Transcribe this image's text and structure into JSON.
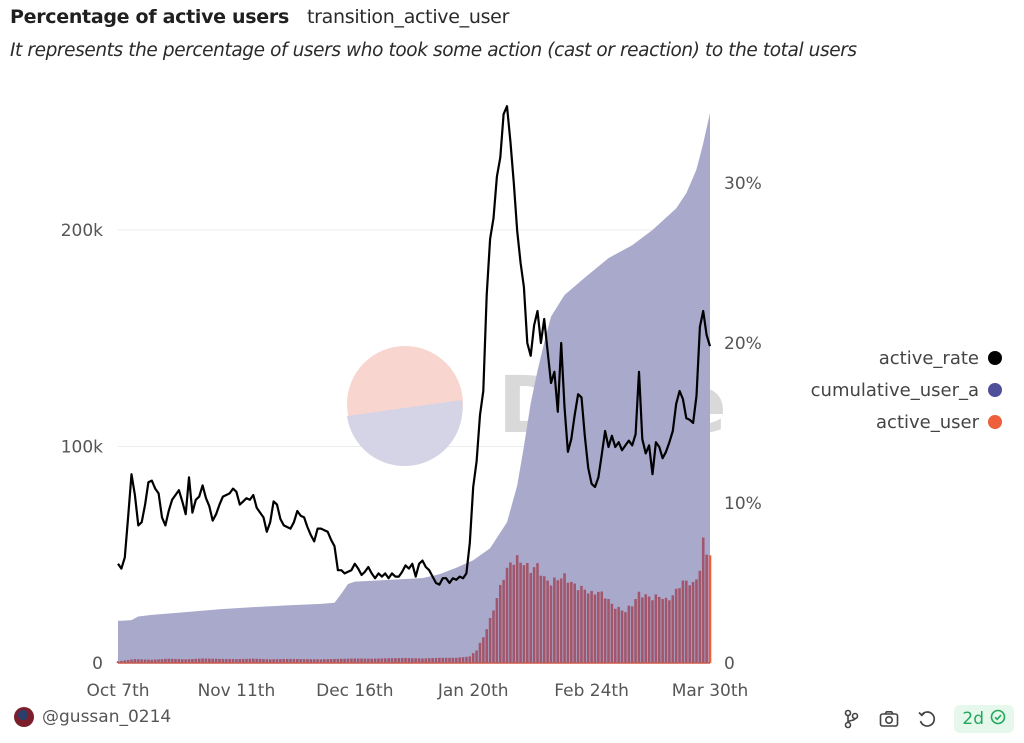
{
  "header": {
    "title": "Percentage of active users",
    "query_name": "transition_active_user",
    "description": "It represents the percentage of users who took some action (cast or reaction) to the total users"
  },
  "watermark": "Dune",
  "footer": {
    "author": "@gussan_0214",
    "icons": [
      "fork-icon",
      "camera-icon",
      "refresh-icon"
    ],
    "freshness_badge": "2d",
    "freshness_icon": "check-circle-icon"
  },
  "colors": {
    "active_rate": "#000000",
    "cumulative_user": "#4f4f9a",
    "cumulative_fill": "#a9a9cc",
    "active_user": "#ee5f3c",
    "active_user_bar": "#a1566b",
    "badge_green": "#1fa85a"
  },
  "chart_data": {
    "type": "area",
    "title": "Percentage of active users",
    "x_start": "2023-10-07",
    "x_end": "2024-03-30",
    "x_ticks": [
      "Oct 7th",
      "Nov 11th",
      "Dec 16th",
      "Jan 20th",
      "Feb 24th",
      "Mar 30th"
    ],
    "x_tick_days": [
      0,
      35,
      70,
      105,
      140,
      175
    ],
    "y_left": {
      "ticks": [
        "0",
        "100k",
        "200k"
      ],
      "tick_values": [
        0,
        100000,
        200000
      ],
      "range": [
        0,
        250000
      ]
    },
    "y_right": {
      "ticks": [
        "0",
        "10%",
        "20%",
        "30%"
      ],
      "tick_values": [
        0,
        10,
        20,
        30
      ],
      "range": [
        0,
        37
      ]
    },
    "grid": true,
    "legend_position": "right",
    "legend": [
      "active_rate",
      "cumulative_user_a",
      "active_user"
    ],
    "series": [
      {
        "name": "cumulative_user_a",
        "axis": "left",
        "type": "area",
        "points": [
          [
            0,
            19500
          ],
          [
            1,
            19500
          ],
          [
            4,
            19800
          ],
          [
            6,
            21500
          ],
          [
            10,
            22200
          ],
          [
            20,
            23500
          ],
          [
            30,
            24800
          ],
          [
            40,
            25800
          ],
          [
            50,
            26600
          ],
          [
            60,
            27300
          ],
          [
            64,
            27800
          ],
          [
            66,
            32000
          ],
          [
            68,
            36500
          ],
          [
            70,
            37600
          ],
          [
            80,
            38400
          ],
          [
            90,
            39200
          ],
          [
            95,
            41000
          ],
          [
            100,
            44000
          ],
          [
            105,
            47500
          ],
          [
            110,
            53000
          ],
          [
            115,
            65000
          ],
          [
            118,
            82000
          ],
          [
            120,
            100000
          ],
          [
            122,
            120000
          ],
          [
            124,
            135000
          ],
          [
            126,
            148000
          ],
          [
            128,
            160000
          ],
          [
            132,
            170000
          ],
          [
            138,
            178000
          ],
          [
            145,
            187000
          ],
          [
            152,
            193000
          ],
          [
            158,
            200000
          ],
          [
            165,
            210000
          ],
          [
            168,
            217000
          ],
          [
            171,
            228000
          ],
          [
            173,
            240000
          ],
          [
            175,
            254000
          ]
        ]
      },
      {
        "name": "active_user",
        "axis": "left",
        "type": "bar",
        "points": [
          [
            0,
            800
          ],
          [
            5,
            1800
          ],
          [
            10,
            1500
          ],
          [
            15,
            2000
          ],
          [
            20,
            1700
          ],
          [
            25,
            2100
          ],
          [
            30,
            1900
          ],
          [
            35,
            1800
          ],
          [
            40,
            2000
          ],
          [
            45,
            1700
          ],
          [
            50,
            1900
          ],
          [
            55,
            1800
          ],
          [
            60,
            1700
          ],
          [
            65,
            1900
          ],
          [
            70,
            2100
          ],
          [
            75,
            2000
          ],
          [
            80,
            2200
          ],
          [
            85,
            2300
          ],
          [
            90,
            2100
          ],
          [
            95,
            2400
          ],
          [
            100,
            2400
          ],
          [
            104,
            3000
          ],
          [
            106,
            6000
          ],
          [
            108,
            12000
          ],
          [
            110,
            20000
          ],
          [
            112,
            30000
          ],
          [
            114,
            40000
          ],
          [
            116,
            46000
          ],
          [
            118,
            48000
          ],
          [
            120,
            46000
          ],
          [
            122,
            43000
          ],
          [
            124,
            45000
          ],
          [
            126,
            39000
          ],
          [
            128,
            37000
          ],
          [
            130,
            39000
          ],
          [
            132,
            40000
          ],
          [
            134,
            37000
          ],
          [
            136,
            35000
          ],
          [
            138,
            34000
          ],
          [
            140,
            32000
          ],
          [
            142,
            33000
          ],
          [
            144,
            31000
          ],
          [
            146,
            27000
          ],
          [
            148,
            25000
          ],
          [
            150,
            24000
          ],
          [
            152,
            27000
          ],
          [
            154,
            32000
          ],
          [
            156,
            31000
          ],
          [
            158,
            30000
          ],
          [
            160,
            31000
          ],
          [
            162,
            29000
          ],
          [
            164,
            31000
          ],
          [
            166,
            36000
          ],
          [
            168,
            38000
          ],
          [
            170,
            36000
          ],
          [
            172,
            43000
          ],
          [
            173,
            56000
          ],
          [
            174,
            52000
          ],
          [
            175,
            49000
          ]
        ]
      },
      {
        "name": "active_rate",
        "axis": "right",
        "type": "line",
        "points": [
          [
            0,
            6.2
          ],
          [
            1,
            5.9
          ],
          [
            2,
            6.6
          ],
          [
            3,
            9.1
          ],
          [
            4,
            11.8
          ],
          [
            5,
            10.5
          ],
          [
            6,
            8.6
          ],
          [
            7,
            8.8
          ],
          [
            8,
            9.9
          ],
          [
            9,
            11.3
          ],
          [
            10,
            11.4
          ],
          [
            11,
            10.9
          ],
          [
            12,
            10.6
          ],
          [
            13,
            9.1
          ],
          [
            14,
            8.6
          ],
          [
            15,
            9.5
          ],
          [
            16,
            10.2
          ],
          [
            17,
            10.5
          ],
          [
            18,
            10.8
          ],
          [
            19,
            10.1
          ],
          [
            20,
            9.3
          ],
          [
            21,
            11.6
          ],
          [
            22,
            9.4
          ],
          [
            23,
            10.2
          ],
          [
            24,
            10.4
          ],
          [
            25,
            11.1
          ],
          [
            26,
            10.3
          ],
          [
            27,
            9.8
          ],
          [
            28,
            8.9
          ],
          [
            29,
            9.3
          ],
          [
            30,
            9.9
          ],
          [
            31,
            10.4
          ],
          [
            32,
            10.5
          ],
          [
            33,
            10.6
          ],
          [
            34,
            10.9
          ],
          [
            35,
            10.7
          ],
          [
            36,
            9.9
          ],
          [
            37,
            10.1
          ],
          [
            38,
            10.3
          ],
          [
            39,
            10.2
          ],
          [
            40,
            10.5
          ],
          [
            41,
            9.7
          ],
          [
            42,
            9.4
          ],
          [
            43,
            9.1
          ],
          [
            44,
            8.2
          ],
          [
            45,
            8.8
          ],
          [
            46,
            10.1
          ],
          [
            47,
            9.9
          ],
          [
            48,
            9.0
          ],
          [
            49,
            8.6
          ],
          [
            50,
            8.5
          ],
          [
            51,
            8.4
          ],
          [
            52,
            8.8
          ],
          [
            53,
            9.5
          ],
          [
            54,
            9.2
          ],
          [
            55,
            9.1
          ],
          [
            56,
            8.5
          ],
          [
            57,
            8.0
          ],
          [
            58,
            7.6
          ],
          [
            59,
            8.4
          ],
          [
            60,
            8.4
          ],
          [
            61,
            8.3
          ],
          [
            62,
            8.2
          ],
          [
            63,
            7.7
          ],
          [
            64,
            7.3
          ],
          [
            65,
            5.8
          ],
          [
            66,
            5.8
          ],
          [
            67,
            5.6
          ],
          [
            68,
            5.7
          ],
          [
            69,
            5.8
          ],
          [
            70,
            6.2
          ],
          [
            71,
            5.9
          ],
          [
            72,
            5.5
          ],
          [
            73,
            5.7
          ],
          [
            74,
            6.0
          ],
          [
            75,
            5.6
          ],
          [
            76,
            5.3
          ],
          [
            77,
            5.6
          ],
          [
            78,
            5.4
          ],
          [
            79,
            5.6
          ],
          [
            80,
            5.3
          ],
          [
            81,
            5.6
          ],
          [
            82,
            5.4
          ],
          [
            83,
            5.4
          ],
          [
            84,
            5.7
          ],
          [
            85,
            6.1
          ],
          [
            86,
            5.9
          ],
          [
            87,
            6.2
          ],
          [
            88,
            5.4
          ],
          [
            89,
            6.2
          ],
          [
            90,
            6.4
          ],
          [
            91,
            6.0
          ],
          [
            92,
            5.8
          ],
          [
            93,
            5.4
          ],
          [
            94,
            5.0
          ],
          [
            95,
            4.9
          ],
          [
            96,
            5.3
          ],
          [
            97,
            5.3
          ],
          [
            98,
            5.0
          ],
          [
            99,
            5.3
          ],
          [
            100,
            5.2
          ],
          [
            101,
            5.4
          ],
          [
            102,
            5.3
          ],
          [
            103,
            5.6
          ],
          [
            104,
            7.5
          ],
          [
            105,
            11.0
          ],
          [
            106,
            12.6
          ],
          [
            107,
            15.5
          ],
          [
            108,
            17.0
          ],
          [
            109,
            23.0
          ],
          [
            110,
            26.5
          ],
          [
            111,
            27.8
          ],
          [
            112,
            30.4
          ],
          [
            113,
            31.6
          ],
          [
            114,
            34.3
          ],
          [
            115,
            34.8
          ],
          [
            116,
            32.6
          ],
          [
            117,
            30.0
          ],
          [
            118,
            27.0
          ],
          [
            119,
            25.0
          ],
          [
            120,
            23.5
          ],
          [
            121,
            20.0
          ],
          [
            122,
            19.2
          ],
          [
            123,
            21.1
          ],
          [
            124,
            22.0
          ],
          [
            125,
            20.0
          ],
          [
            126,
            21.5
          ],
          [
            127,
            19.5
          ],
          [
            128,
            17.5
          ],
          [
            129,
            18.2
          ],
          [
            130,
            15.7
          ],
          [
            131,
            20.0
          ],
          [
            132,
            16.0
          ],
          [
            133,
            13.2
          ],
          [
            134,
            14.0
          ],
          [
            135,
            15.5
          ],
          [
            136,
            16.8
          ],
          [
            137,
            16.6
          ],
          [
            138,
            14.2
          ],
          [
            139,
            12.2
          ],
          [
            140,
            11.2
          ],
          [
            141,
            11.0
          ],
          [
            142,
            11.6
          ],
          [
            143,
            13.0
          ],
          [
            144,
            14.5
          ],
          [
            145,
            13.5
          ],
          [
            146,
            14.2
          ],
          [
            147,
            13.5
          ],
          [
            148,
            13.8
          ],
          [
            149,
            13.3
          ],
          [
            150,
            13.6
          ],
          [
            151,
            13.9
          ],
          [
            152,
            13.6
          ],
          [
            153,
            14.3
          ],
          [
            154,
            18.2
          ],
          [
            155,
            14.0
          ],
          [
            156,
            13.1
          ],
          [
            157,
            13.6
          ],
          [
            158,
            11.8
          ],
          [
            159,
            13.8
          ],
          [
            160,
            13.5
          ],
          [
            161,
            12.8
          ],
          [
            162,
            13.2
          ],
          [
            163,
            13.8
          ],
          [
            164,
            14.5
          ],
          [
            165,
            16.2
          ],
          [
            166,
            17.0
          ],
          [
            167,
            16.5
          ],
          [
            168,
            15.3
          ],
          [
            169,
            15.2
          ],
          [
            170,
            15.0
          ],
          [
            171,
            16.7
          ],
          [
            172,
            21.0
          ],
          [
            173,
            22.0
          ],
          [
            174,
            20.5
          ],
          [
            175,
            19.8
          ]
        ]
      }
    ]
  }
}
